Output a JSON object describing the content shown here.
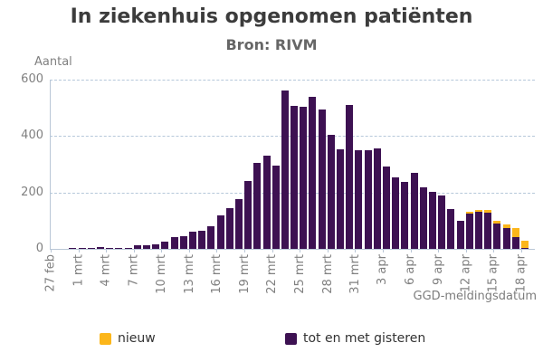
{
  "title": "In ziekenhuis opgenomen patiënten",
  "subtitle": "Bron: RIVM",
  "y_axis_title": "Aantal",
  "x_axis_title": "GGD-meldingsdatum",
  "legend": [
    {
      "label": "nieuw",
      "color": "#fcb61a"
    },
    {
      "label": "tot en met gisteren",
      "color": "#3d1152"
    }
  ],
  "colors": {
    "bar_new": "#fcb61a",
    "bar_until_yesterday": "#3d1152",
    "gridline": "#b6c8da",
    "axis_line": "#b9c6d6",
    "axis_label": "#808080",
    "title_text": "#3c3c3c",
    "subtitle_text": "#666666",
    "background": "#ffffff"
  },
  "chart_data": {
    "type": "bar",
    "stacked": true,
    "title": "In ziekenhuis opgenomen patiënten",
    "subtitle": "Bron: RIVM",
    "xlabel": "GGD-meldingsdatum",
    "ylabel": "Aantal",
    "ylim": [
      0,
      600
    ],
    "yticks": [
      0,
      200,
      400,
      600
    ],
    "grid": "horizontal-dashed",
    "legend_position": "bottom",
    "categories": [
      "27 feb",
      "28 feb",
      "29 feb",
      "1 mrt",
      "2 mrt",
      "3 mrt",
      "4 mrt",
      "5 mrt",
      "6 mrt",
      "7 mrt",
      "8 mrt",
      "9 mrt",
      "10 mrt",
      "11 mrt",
      "12 mrt",
      "13 mrt",
      "14 mrt",
      "15 mrt",
      "16 mrt",
      "17 mrt",
      "18 mrt",
      "19 mrt",
      "20 mrt",
      "21 mrt",
      "22 mrt",
      "23 mrt",
      "24 mrt",
      "25 mrt",
      "26 mrt",
      "27 mrt",
      "28 mrt",
      "29 mrt",
      "30 mrt",
      "31 mrt",
      "1 apr",
      "2 apr",
      "3 apr",
      "4 apr",
      "5 apr",
      "6 apr",
      "7 apr",
      "8 apr",
      "9 apr",
      "10 apr",
      "11 apr",
      "12 apr",
      "13 apr",
      "14 apr",
      "15 apr",
      "16 apr",
      "17 apr",
      "18 apr"
    ],
    "tick_labels": [
      "27 feb",
      "1 mrt",
      "4 mrt",
      "7 mrt",
      "10 mrt",
      "13 mrt",
      "16 mrt",
      "19 mrt",
      "22 mrt",
      "25 mrt",
      "28 mrt",
      "31 mrt",
      "3 apr",
      "6 apr",
      "9 apr",
      "12 apr",
      "15 apr",
      "18 apr"
    ],
    "tick_every": 3,
    "series": [
      {
        "name": "tot en met gisteren",
        "color": "#3d1152",
        "values": [
          0,
          0,
          1,
          1,
          2,
          5,
          1,
          3,
          4,
          13,
          13,
          16,
          27,
          43,
          44,
          62,
          65,
          81,
          120,
          145,
          177,
          242,
          306,
          331,
          296,
          560,
          508,
          505,
          540,
          494,
          405,
          352,
          510,
          351,
          350,
          357,
          293,
          253,
          239,
          269,
          217,
          201,
          188,
          142,
          101,
          124,
          130,
          128,
          90,
          73,
          41,
          2
        ]
      },
      {
        "name": "nieuw",
        "color": "#fcb61a",
        "values": [
          0,
          0,
          0,
          0,
          0,
          0,
          0,
          0,
          0,
          0,
          0,
          0,
          0,
          0,
          0,
          0,
          0,
          0,
          0,
          0,
          0,
          0,
          0,
          0,
          0,
          0,
          0,
          0,
          0,
          0,
          0,
          0,
          0,
          0,
          0,
          0,
          0,
          0,
          0,
          0,
          0,
          0,
          0,
          0,
          0,
          9,
          9,
          11,
          10,
          14,
          33,
          28
        ]
      }
    ]
  }
}
